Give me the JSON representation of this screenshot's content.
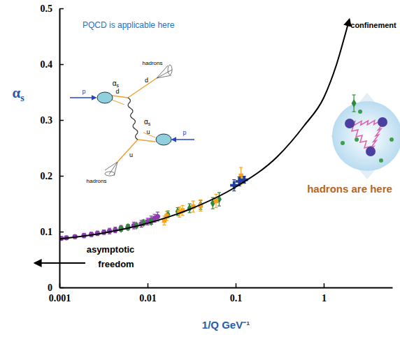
{
  "chart_data": {
    "type": "scatter",
    "log": "x",
    "grid": false,
    "tick_labels": true,
    "xlabel": "1/Q GeV⁻¹",
    "ylabel": "αs",
    "xlim": [
      0.001,
      6
    ],
    "ylim": [
      0,
      0.5
    ],
    "xticks": [
      0.001,
      0.01,
      0.1,
      1
    ],
    "yticks": [
      0,
      0.1,
      0.2,
      0.3,
      0.4,
      0.5
    ],
    "series": [
      {
        "type": "scatter",
        "color": "#8e3bb0",
        "marker": "circle",
        "x": [
          0.00105,
          0.0012,
          0.0015,
          0.0019,
          0.0023,
          0.0027,
          0.0032,
          0.0037,
          0.0043,
          0.005,
          0.006,
          0.007,
          0.0085,
          0.01,
          0.011,
          0.012,
          0.013
        ],
        "values": [
          0.088,
          0.089,
          0.091,
          0.093,
          0.095,
          0.097,
          0.099,
          0.101,
          0.103,
          0.106,
          0.108,
          0.111,
          0.114,
          0.118,
          0.121,
          0.124,
          0.127
        ],
        "errors": [
          0.003,
          0.003,
          0.003,
          0.004,
          0.004,
          0.004,
          0.004,
          0.005,
          0.005,
          0.005,
          0.005,
          0.006,
          0.006,
          0.006,
          0.007,
          0.007,
          0.008
        ]
      },
      {
        "type": "scatter",
        "color": "#2e8b3a",
        "marker": "diamond",
        "x": [
          0.005,
          0.006,
          0.0075,
          0.009,
          0.011,
          0.017,
          0.022,
          0.03,
          0.04,
          0.055,
          0.065,
          2.2
        ],
        "values": [
          0.105,
          0.108,
          0.111,
          0.116,
          0.118,
          0.131,
          0.136,
          0.142,
          0.148,
          0.151,
          0.158,
          0.33
        ],
        "errors": [
          0.004,
          0.004,
          0.004,
          0.005,
          0.005,
          0.006,
          0.007,
          0.008,
          0.008,
          0.01,
          0.012,
          0.015
        ]
      },
      {
        "type": "scatter",
        "color": "#f5a31f",
        "marker": "square",
        "x": [
          0.0155,
          0.0165,
          0.023,
          0.025,
          0.033,
          0.04,
          0.06,
          0.115
        ],
        "values": [
          0.12,
          0.128,
          0.135,
          0.138,
          0.145,
          0.147,
          0.155,
          0.2
        ],
        "errors": [
          0.008,
          0.008,
          0.009,
          0.009,
          0.01,
          0.01,
          0.012,
          0.015
        ]
      },
      {
        "type": "scatter",
        "color": "#1f3d99",
        "marker": "plus",
        "x": [
          0.096,
          0.11,
          0.125
        ],
        "values": [
          0.183,
          0.19,
          0.193
        ],
        "errors": [
          0.01,
          0.008,
          0.006
        ]
      },
      {
        "type": "line",
        "color": "#000000",
        "marker": "arrow",
        "line_style": "solid",
        "x": [
          0.001,
          0.003,
          0.01,
          0.03,
          0.1,
          0.3,
          0.6,
          1,
          1.4,
          1.8,
          1.95
        ],
        "values": [
          0.087,
          0.097,
          0.115,
          0.14,
          0.18,
          0.235,
          0.29,
          0.34,
          0.4,
          0.46,
          0.48
        ]
      }
    ],
    "annotations": [
      "PQCD is applicable here",
      "confinement",
      "hadrons are here",
      "asymptotic freedom",
      "hadrons",
      "hadrons",
      "αs",
      "αs",
      "d",
      "d",
      "u",
      "u",
      "p",
      "p"
    ]
  }
}
